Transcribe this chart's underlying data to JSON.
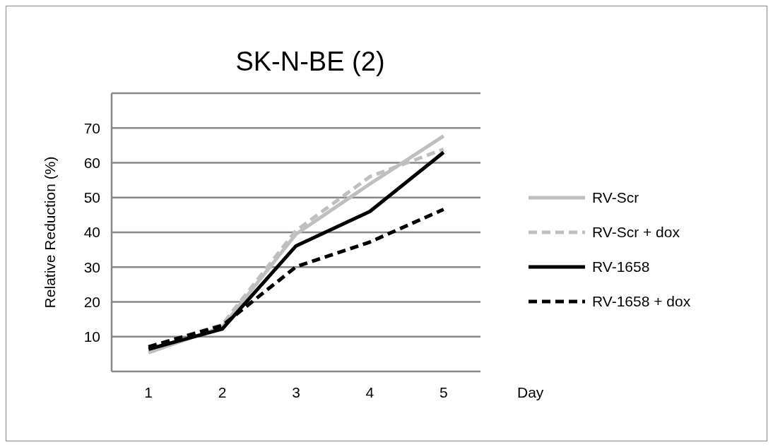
{
  "chart_data": {
    "type": "line",
    "title": "SK-N-BE (2)",
    "ylabel": "Relative Reduction (%)",
    "xlabel": "Day",
    "categories": [
      "1",
      "2",
      "3",
      "4",
      "5"
    ],
    "ylim": [
      0,
      80
    ],
    "yticks": [
      {
        "value": 0,
        "label": null
      },
      10,
      20,
      30,
      40,
      50,
      60,
      70,
      {
        "value": 80,
        "label": null
      }
    ],
    "grid": "y",
    "legend": "right",
    "marker": "none",
    "series": [
      {
        "name": "RV-Scr",
        "color": "#bfbfbf",
        "line_style": "solid",
        "values": [
          5.4,
          12.8,
          39.5,
          53.9,
          67.7
        ]
      },
      {
        "name": "RV-Scr + dox",
        "color": "#bfbfbf",
        "line_style": "dashed",
        "values": [
          6.8,
          13.5,
          40.5,
          56,
          63.9
        ]
      },
      {
        "name": "RV-1658",
        "color": "#000000",
        "line_style": "solid",
        "values": [
          6.4,
          12.2,
          36.1,
          46,
          63
        ]
      },
      {
        "name": "RV-1658 + dox",
        "color": "#000000",
        "line_style": "dashed",
        "values": [
          7.1,
          13.2,
          30.1,
          37.2,
          46.6
        ]
      }
    ]
  }
}
